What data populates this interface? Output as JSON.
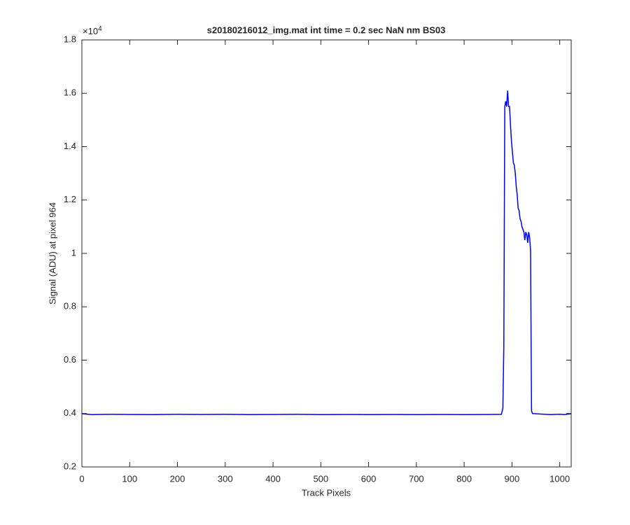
{
  "chart_data": {
    "type": "line",
    "title": "s20180216012_img.mat int time = 0.2 sec  NaN nm BS03",
    "x_label": "Track Pixels",
    "y_label": "Signal (ADU) at pixel 964",
    "y_multiplier": {
      "base": "×10",
      "exponent": "4"
    },
    "x": [
      0,
      20,
      60,
      100,
      150,
      200,
      250,
      300,
      350,
      400,
      450,
      500,
      550,
      600,
      650,
      700,
      750,
      800,
      850,
      878,
      881,
      883,
      885,
      887,
      889,
      891,
      893,
      895,
      897,
      899,
      901,
      903,
      905,
      907,
      909,
      911,
      913,
      915,
      917,
      919,
      921,
      923,
      925,
      927,
      929,
      931,
      933,
      935,
      937,
      939,
      940,
      941,
      943,
      960,
      980,
      1000,
      1010,
      1024
    ],
    "series": [
      {
        "name": "Signal",
        "color": "#0000ff",
        "values": [
          3990,
          3960,
          3970,
          3965,
          3960,
          3970,
          3965,
          3970,
          3960,
          3965,
          3970,
          3960,
          3965,
          3960,
          3965,
          3960,
          3965,
          3960,
          3965,
          3970,
          4200,
          6500,
          15500,
          15700,
          15500,
          16100,
          15500,
          15500,
          14800,
          14200,
          13800,
          13400,
          13300,
          13000,
          12500,
          12200,
          11700,
          11600,
          11300,
          11200,
          11000,
          10900,
          10800,
          10500,
          10800,
          10700,
          10400,
          10800,
          10600,
          10100,
          7000,
          4100,
          4000,
          3980,
          3960,
          3975,
          3960,
          3990
        ]
      }
    ],
    "xlim": [
      0,
      1024
    ],
    "xticks": [
      0,
      100,
      200,
      300,
      400,
      500,
      600,
      700,
      800,
      900,
      1000
    ],
    "ylim": [
      2000,
      18000
    ],
    "yticks": [
      {
        "value": 2000,
        "label": "0.2"
      },
      {
        "value": 4000,
        "label": "0.4"
      },
      {
        "value": 6000,
        "label": "0.6"
      },
      {
        "value": 8000,
        "label": "0.8"
      },
      {
        "value": 10000,
        "label": "1"
      },
      {
        "value": 12000,
        "label": "1.2"
      },
      {
        "value": 14000,
        "label": "1.4"
      },
      {
        "value": 16000,
        "label": "1.6"
      },
      {
        "value": 18000,
        "label": "1.8"
      }
    ],
    "grid": false
  }
}
